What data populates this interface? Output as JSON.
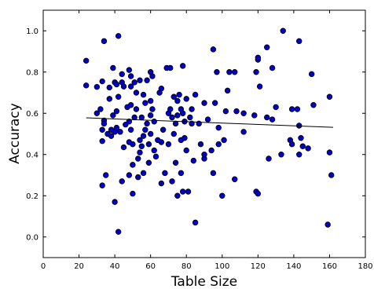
{
  "chart_data": {
    "type": "scatter",
    "title": "",
    "xlabel": "Table Size",
    "ylabel": "Accuracy",
    "xlim": [
      0,
      180
    ],
    "ylim": [
      -0.1,
      1.1
    ],
    "x_ticks": [
      0,
      20,
      40,
      60,
      80,
      100,
      120,
      140,
      160,
      180
    ],
    "y_ticks": [
      0.0,
      0.2,
      0.4,
      0.6,
      0.8,
      1.0
    ],
    "x_tick_labels": [
      "0",
      "20",
      "40",
      "60",
      "80",
      "100",
      "120",
      "140",
      "160",
      "180"
    ],
    "y_tick_labels": [
      "0.0",
      "0.2",
      "0.4",
      "0.6",
      "0.8",
      "1.0"
    ],
    "grid": false,
    "point_color": "#0000cc",
    "line_color": "#000000",
    "trend_line": {
      "x": [
        24,
        162
      ],
      "y": [
        0.578,
        0.532
      ]
    },
    "points": [
      [
        24,
        0.855
      ],
      [
        24,
        0.735
      ],
      [
        30,
        0.728
      ],
      [
        30,
        0.6
      ],
      [
        32,
        0.62
      ],
      [
        33,
        0.755
      ],
      [
        33,
        0.52
      ],
      [
        33,
        0.465
      ],
      [
        33,
        0.25
      ],
      [
        34,
        0.565
      ],
      [
        34,
        0.55
      ],
      [
        34,
        0.95
      ],
      [
        35,
        0.3
      ],
      [
        36,
        0.5
      ],
      [
        37,
        0.725
      ],
      [
        37,
        0.67
      ],
      [
        38,
        0.52
      ],
      [
        38,
        0.49
      ],
      [
        39,
        0.59
      ],
      [
        39,
        0.82
      ],
      [
        40,
        0.75
      ],
      [
        40,
        0.51
      ],
      [
        40,
        0.17
      ],
      [
        41,
        0.74
      ],
      [
        41,
        0.61
      ],
      [
        41,
        0.53
      ],
      [
        42,
        0.975
      ],
      [
        42,
        0.025
      ],
      [
        42,
        0.68
      ],
      [
        43,
        0.51
      ],
      [
        44,
        0.75
      ],
      [
        44,
        0.79
      ],
      [
        44,
        0.27
      ],
      [
        45,
        0.73
      ],
      [
        45,
        0.435
      ],
      [
        46,
        0.545
      ],
      [
        47,
        0.63
      ],
      [
        48,
        0.81
      ],
      [
        48,
        0.56
      ],
      [
        48,
        0.46
      ],
      [
        48,
        0.3
      ],
      [
        49,
        0.78
      ],
      [
        49,
        0.73
      ],
      [
        49,
        0.64
      ],
      [
        49,
        0.52
      ],
      [
        50,
        0.45
      ],
      [
        50,
        0.35
      ],
      [
        50,
        0.21
      ],
      [
        51,
        0.75
      ],
      [
        51,
        0.58
      ],
      [
        52,
        0.7
      ],
      [
        52,
        0.62
      ],
      [
        53,
        0.38
      ],
      [
        53,
        0.29
      ],
      [
        54,
        0.76
      ],
      [
        54,
        0.47
      ],
      [
        54,
        0.41
      ],
      [
        55,
        0.58
      ],
      [
        55,
        0.44
      ],
      [
        56,
        0.69
      ],
      [
        56,
        0.49
      ],
      [
        56,
        0.31
      ],
      [
        57,
        0.65
      ],
      [
        57,
        0.52
      ],
      [
        58,
        0.76
      ],
      [
        58,
        0.55
      ],
      [
        59,
        0.45
      ],
      [
        59,
        0.36
      ],
      [
        60,
        0.8
      ],
      [
        60,
        0.66
      ],
      [
        60,
        0.59
      ],
      [
        60,
        0.5
      ],
      [
        61,
        0.78
      ],
      [
        61,
        0.62
      ],
      [
        62,
        0.56
      ],
      [
        62,
        0.42
      ],
      [
        63,
        0.39
      ],
      [
        64,
        0.47
      ],
      [
        65,
        0.7
      ],
      [
        66,
        0.72
      ],
      [
        66,
        0.46
      ],
      [
        66,
        0.26
      ],
      [
        67,
        0.52
      ],
      [
        68,
        0.31
      ],
      [
        69,
        0.82
      ],
      [
        70,
        0.6
      ],
      [
        70,
        0.45
      ],
      [
        71,
        0.62
      ],
      [
        71,
        0.82
      ],
      [
        72,
        0.58
      ],
      [
        72,
        0.27
      ],
      [
        73,
        0.68
      ],
      [
        73,
        0.5
      ],
      [
        74,
        0.55
      ],
      [
        74,
        0.36
      ],
      [
        75,
        0.66
      ],
      [
        75,
        0.59
      ],
      [
        75,
        0.2
      ],
      [
        76,
        0.69
      ],
      [
        77,
        0.62
      ],
      [
        77,
        0.47
      ],
      [
        77,
        0.31
      ],
      [
        78,
        0.6
      ],
      [
        78,
        0.83
      ],
      [
        78,
        0.22
      ],
      [
        79,
        0.56
      ],
      [
        79,
        0.48
      ],
      [
        80,
        0.67
      ],
      [
        80,
        0.42
      ],
      [
        81,
        0.22
      ],
      [
        82,
        0.58
      ],
      [
        83,
        0.55
      ],
      [
        83,
        0.62
      ],
      [
        84,
        0.37
      ],
      [
        85,
        0.69
      ],
      [
        85,
        0.07
      ],
      [
        87,
        0.55
      ],
      [
        88,
        0.45
      ],
      [
        90,
        0.65
      ],
      [
        90,
        0.4
      ],
      [
        90,
        0.38
      ],
      [
        92,
        0.57
      ],
      [
        94,
        0.42
      ],
      [
        95,
        0.31
      ],
      [
        95,
        0.91
      ],
      [
        96,
        0.65
      ],
      [
        97,
        0.8
      ],
      [
        98,
        0.53
      ],
      [
        98,
        0.45
      ],
      [
        100,
        0.2
      ],
      [
        101,
        0.47
      ],
      [
        102,
        0.61
      ],
      [
        103,
        0.71
      ],
      [
        104,
        0.8
      ],
      [
        107,
        0.8
      ],
      [
        107,
        0.28
      ],
      [
        108,
        0.61
      ],
      [
        112,
        0.6
      ],
      [
        112,
        0.51
      ],
      [
        118,
        0.59
      ],
      [
        119,
        0.22
      ],
      [
        119,
        0.8
      ],
      [
        120,
        0.21
      ],
      [
        120,
        0.86
      ],
      [
        120,
        0.87
      ],
      [
        121,
        0.73
      ],
      [
        125,
        0.92
      ],
      [
        125,
        0.58
      ],
      [
        126,
        0.38
      ],
      [
        128,
        0.57
      ],
      [
        128,
        0.82
      ],
      [
        130,
        0.63
      ],
      [
        133,
        0.4
      ],
      [
        134,
        1.0
      ],
      [
        138,
        0.47
      ],
      [
        139,
        0.62
      ],
      [
        139,
        0.45
      ],
      [
        142,
        0.62
      ],
      [
        143,
        0.95
      ],
      [
        143,
        0.4
      ],
      [
        143,
        0.54
      ],
      [
        144,
        0.48
      ],
      [
        145,
        0.44
      ],
      [
        148,
        0.43
      ],
      [
        150,
        0.79
      ],
      [
        151,
        0.64
      ],
      [
        159,
        0.06
      ],
      [
        160,
        0.68
      ],
      [
        160,
        0.41
      ],
      [
        161,
        0.3
      ]
    ]
  }
}
